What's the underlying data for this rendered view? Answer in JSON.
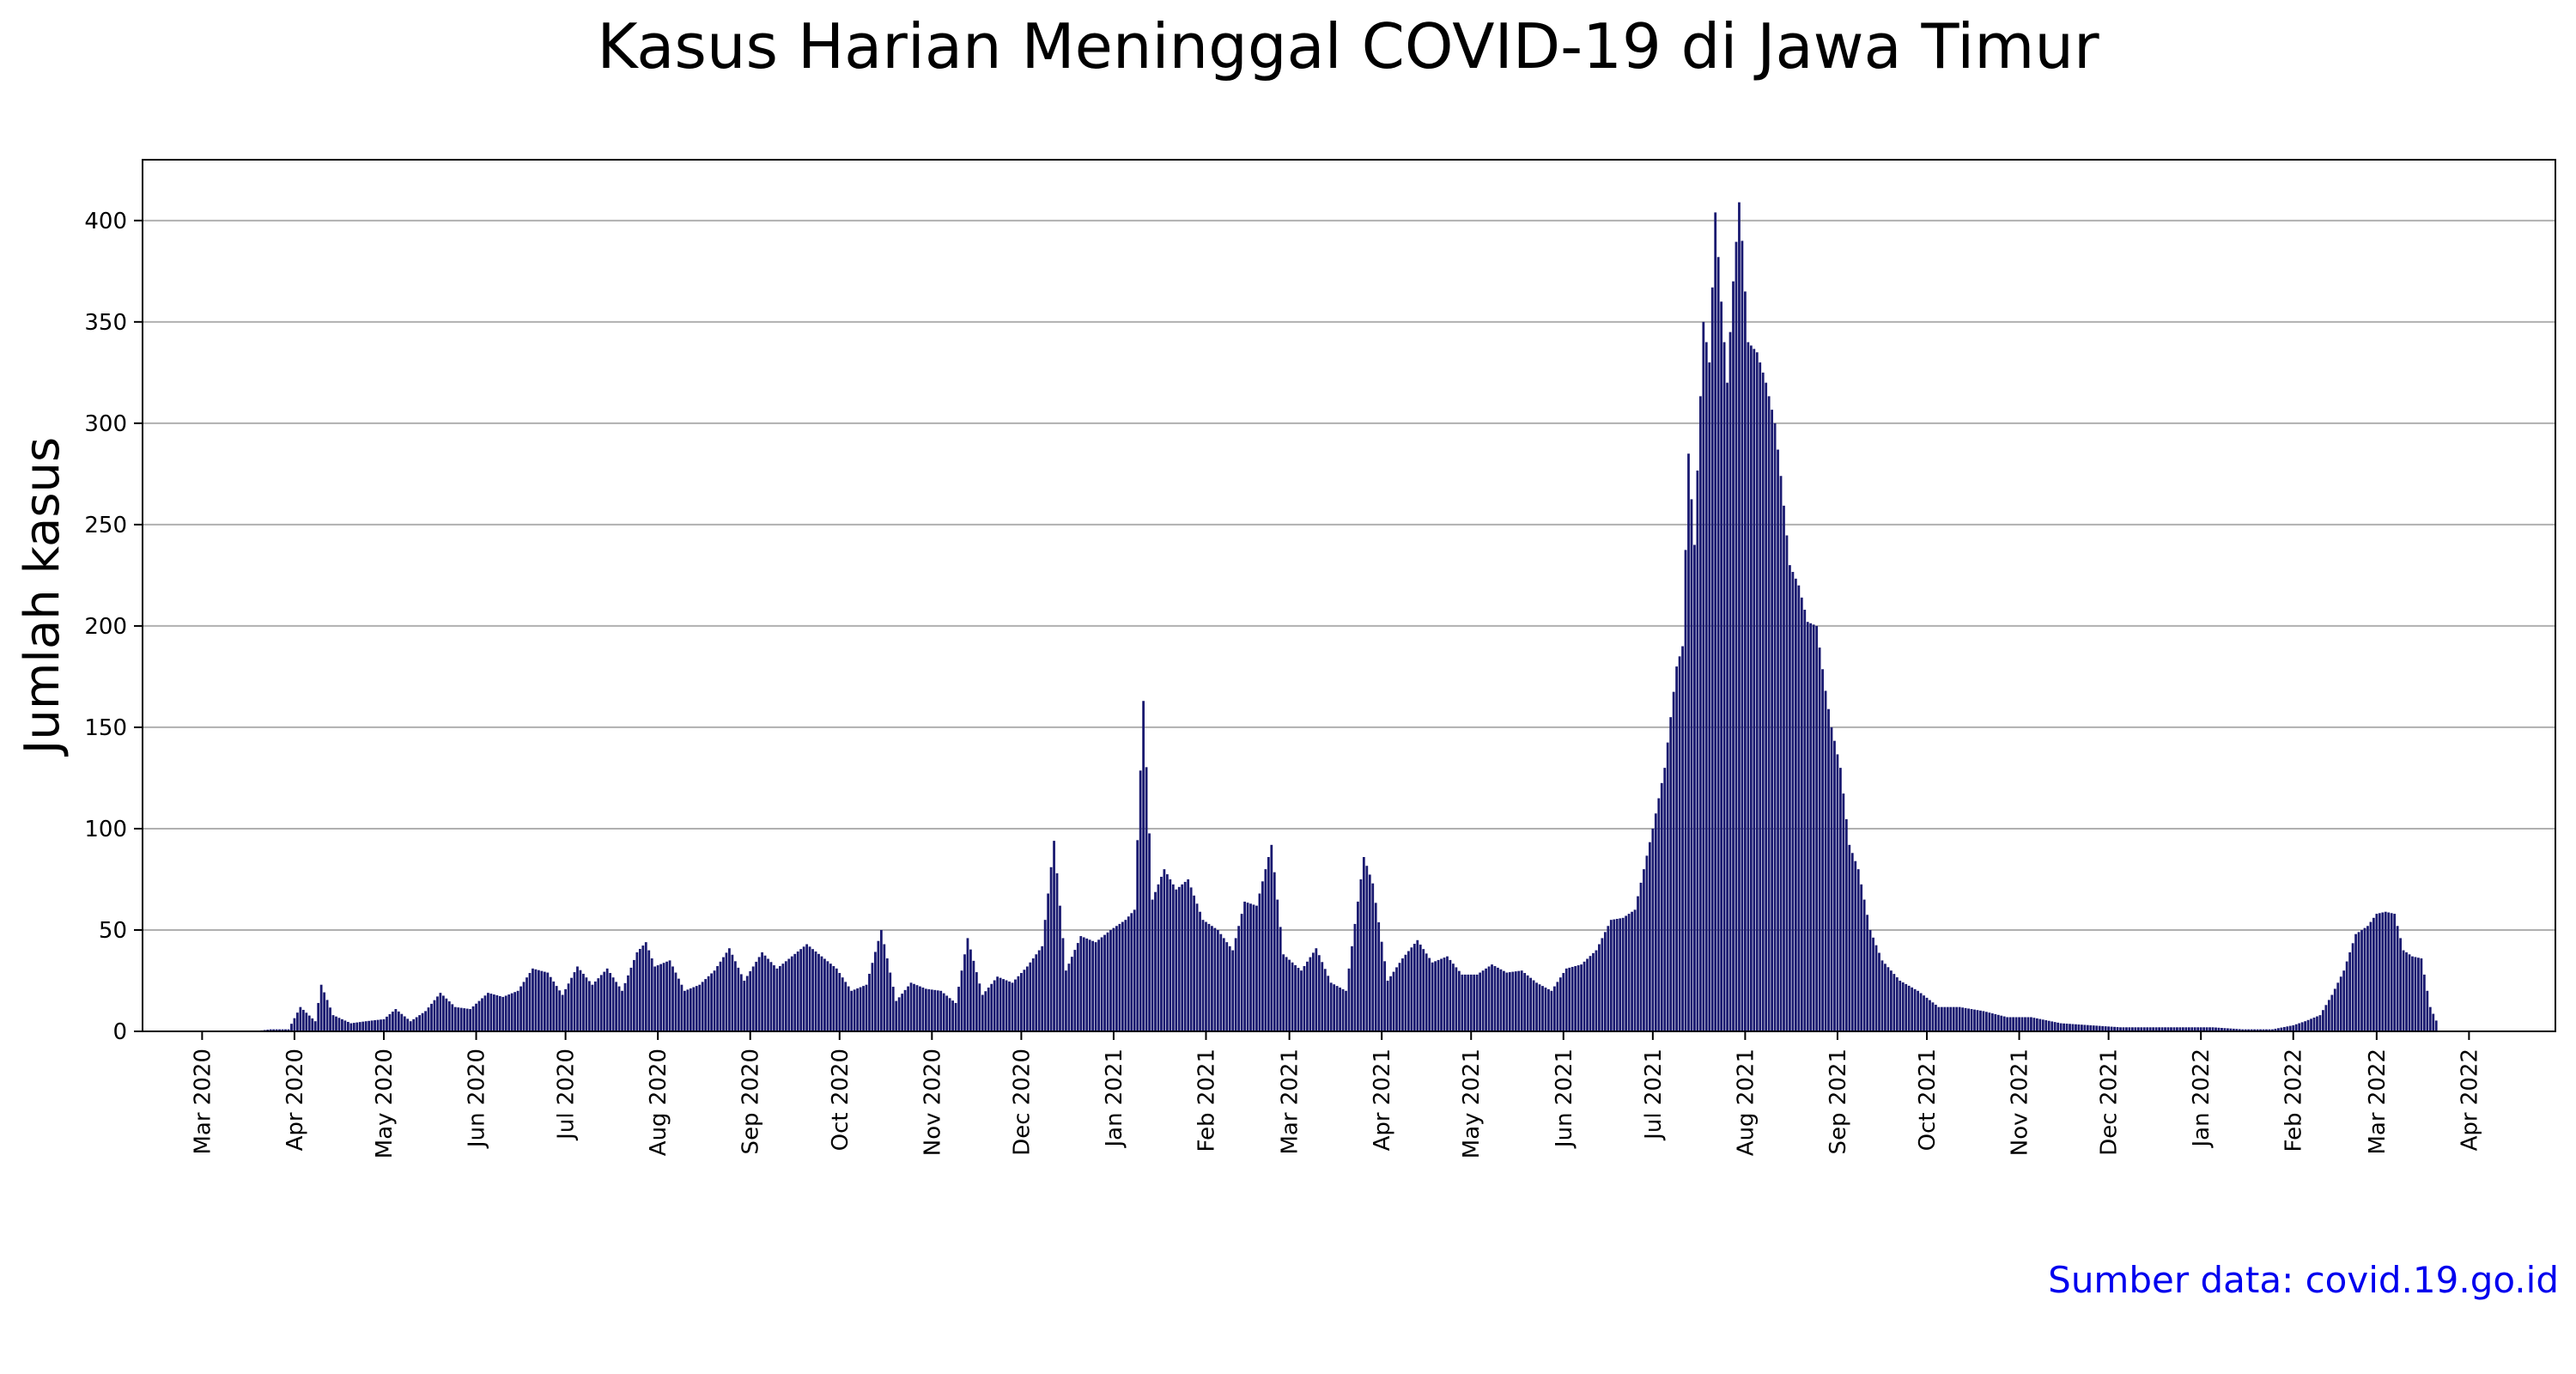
{
  "chart_data": {
    "type": "bar",
    "title": "Kasus Harian Meninggal COVID-19 di Jawa Timur",
    "xlabel": "",
    "ylabel": "Jumlah kasus",
    "x_ticks": [
      "Mar 2020",
      "Apr 2020",
      "May 2020",
      "Jun 2020",
      "Jul 2020",
      "Aug 2020",
      "Sep 2020",
      "Oct 2020",
      "Nov 2020",
      "Dec 2020",
      "Jan 2021",
      "Feb 2021",
      "Mar 2021",
      "Apr 2021",
      "May 2021",
      "Jun 2021",
      "Jul 2021",
      "Aug 2021",
      "Sep 2021",
      "Oct 2021",
      "Nov 2021",
      "Dec 2021",
      "Jan 2022",
      "Feb 2022",
      "Mar 2022",
      "Apr 2022"
    ],
    "y_ticks": [
      0,
      50,
      100,
      150,
      200,
      250,
      300,
      350,
      400
    ],
    "ylim": [
      0,
      430
    ],
    "xlim": [
      "2020-02-10",
      "2022-04-30"
    ],
    "grid": "horizontal",
    "bar_color": "#191970",
    "series": [
      {
        "values": [
          [
            "2020-03-18",
            0
          ],
          [
            "2020-03-24",
            1
          ],
          [
            "2020-03-30",
            1
          ],
          [
            "2020-04-03",
            12
          ],
          [
            "2020-04-08",
            5
          ],
          [
            "2020-04-10",
            23
          ],
          [
            "2020-04-14",
            8
          ],
          [
            "2020-04-20",
            4
          ],
          [
            "2020-04-25",
            5
          ],
          [
            "2020-05-01",
            6
          ],
          [
            "2020-05-05",
            11
          ],
          [
            "2020-05-10",
            5
          ],
          [
            "2020-05-15",
            10
          ],
          [
            "2020-05-20",
            19
          ],
          [
            "2020-05-25",
            12
          ],
          [
            "2020-05-30",
            11
          ],
          [
            "2020-06-05",
            19
          ],
          [
            "2020-06-10",
            17
          ],
          [
            "2020-06-15",
            20
          ],
          [
            "2020-06-20",
            31
          ],
          [
            "2020-06-25",
            29
          ],
          [
            "2020-06-30",
            18
          ],
          [
            "2020-07-05",
            32
          ],
          [
            "2020-07-10",
            23
          ],
          [
            "2020-07-15",
            31
          ],
          [
            "2020-07-20",
            20
          ],
          [
            "2020-07-25",
            39
          ],
          [
            "2020-07-28",
            44
          ],
          [
            "2020-07-31",
            32
          ],
          [
            "2020-08-05",
            35
          ],
          [
            "2020-08-10",
            20
          ],
          [
            "2020-08-15",
            23
          ],
          [
            "2020-08-20",
            30
          ],
          [
            "2020-08-25",
            41
          ],
          [
            "2020-08-30",
            25
          ],
          [
            "2020-09-05",
            39
          ],
          [
            "2020-09-10",
            31
          ],
          [
            "2020-09-15",
            37
          ],
          [
            "2020-09-20",
            43
          ],
          [
            "2020-09-25",
            37
          ],
          [
            "2020-09-30",
            31
          ],
          [
            "2020-10-05",
            20
          ],
          [
            "2020-10-10",
            23
          ],
          [
            "2020-10-15",
            50
          ],
          [
            "2020-10-20",
            15
          ],
          [
            "2020-10-25",
            24
          ],
          [
            "2020-10-30",
            21
          ],
          [
            "2020-11-04",
            20
          ],
          [
            "2020-11-09",
            14
          ],
          [
            "2020-11-13",
            46
          ],
          [
            "2020-11-18",
            18
          ],
          [
            "2020-11-23",
            27
          ],
          [
            "2020-11-28",
            24
          ],
          [
            "2020-12-03",
            32
          ],
          [
            "2020-12-08",
            42
          ],
          [
            "2020-12-12",
            94
          ],
          [
            "2020-12-16",
            30
          ],
          [
            "2020-12-21",
            47
          ],
          [
            "2020-12-26",
            44
          ],
          [
            "2020-12-31",
            50
          ],
          [
            "2021-01-05",
            55
          ],
          [
            "2021-01-08",
            60
          ],
          [
            "2021-01-11",
            163
          ],
          [
            "2021-01-14",
            65
          ],
          [
            "2021-01-18",
            80
          ],
          [
            "2021-01-22",
            70
          ],
          [
            "2021-01-26",
            75
          ],
          [
            "2021-01-31",
            55
          ],
          [
            "2021-02-05",
            50
          ],
          [
            "2021-02-10",
            40
          ],
          [
            "2021-02-14",
            64
          ],
          [
            "2021-02-18",
            62
          ],
          [
            "2021-02-23",
            92
          ],
          [
            "2021-02-27",
            38
          ],
          [
            "2021-03-05",
            30
          ],
          [
            "2021-03-10",
            41
          ],
          [
            "2021-03-15",
            24
          ],
          [
            "2021-03-20",
            20
          ],
          [
            "2021-03-26",
            86
          ],
          [
            "2021-03-29",
            73
          ],
          [
            "2021-04-03",
            25
          ],
          [
            "2021-04-08",
            36
          ],
          [
            "2021-04-13",
            45
          ],
          [
            "2021-04-18",
            34
          ],
          [
            "2021-04-23",
            37
          ],
          [
            "2021-04-28",
            28
          ],
          [
            "2021-05-03",
            28
          ],
          [
            "2021-05-08",
            33
          ],
          [
            "2021-05-13",
            29
          ],
          [
            "2021-05-18",
            30
          ],
          [
            "2021-05-23",
            24
          ],
          [
            "2021-05-28",
            20
          ],
          [
            "2021-06-02",
            31
          ],
          [
            "2021-06-07",
            33
          ],
          [
            "2021-06-12",
            40
          ],
          [
            "2021-06-17",
            55
          ],
          [
            "2021-06-21",
            56
          ],
          [
            "2021-06-25",
            60
          ],
          [
            "2021-07-01",
            100
          ],
          [
            "2021-07-05",
            130
          ],
          [
            "2021-07-09",
            180
          ],
          [
            "2021-07-11",
            190
          ],
          [
            "2021-07-13",
            285
          ],
          [
            "2021-07-15",
            240
          ],
          [
            "2021-07-18",
            350
          ],
          [
            "2021-07-20",
            330
          ],
          [
            "2021-07-22",
            404
          ],
          [
            "2021-07-24",
            360
          ],
          [
            "2021-07-26",
            320
          ],
          [
            "2021-07-28",
            370
          ],
          [
            "2021-07-30",
            409
          ],
          [
            "2021-07-31",
            390
          ],
          [
            "2021-08-02",
            340
          ],
          [
            "2021-08-05",
            335
          ],
          [
            "2021-08-08",
            320
          ],
          [
            "2021-08-11",
            300
          ],
          [
            "2021-08-13",
            274
          ],
          [
            "2021-08-16",
            230
          ],
          [
            "2021-08-19",
            220
          ],
          [
            "2021-08-22",
            202
          ],
          [
            "2021-08-25",
            200
          ],
          [
            "2021-08-28",
            168
          ],
          [
            "2021-08-30",
            150
          ],
          [
            "2021-09-02",
            130
          ],
          [
            "2021-09-05",
            92
          ],
          [
            "2021-09-08",
            80
          ],
          [
            "2021-09-12",
            50
          ],
          [
            "2021-09-16",
            35
          ],
          [
            "2021-09-22",
            25
          ],
          [
            "2021-09-28",
            20
          ],
          [
            "2021-10-05",
            12
          ],
          [
            "2021-10-12",
            12
          ],
          [
            "2021-10-20",
            10
          ],
          [
            "2021-10-28",
            7
          ],
          [
            "2021-11-05",
            7
          ],
          [
            "2021-11-15",
            4
          ],
          [
            "2021-11-25",
            3
          ],
          [
            "2021-12-05",
            2
          ],
          [
            "2021-12-15",
            2
          ],
          [
            "2021-12-25",
            2
          ],
          [
            "2022-01-05",
            2
          ],
          [
            "2022-01-15",
            1
          ],
          [
            "2022-01-25",
            1
          ],
          [
            "2022-02-01",
            3
          ],
          [
            "2022-02-05",
            5
          ],
          [
            "2022-02-10",
            8
          ],
          [
            "2022-02-14",
            18
          ],
          [
            "2022-02-18",
            30
          ],
          [
            "2022-02-22",
            48
          ],
          [
            "2022-02-26",
            52
          ],
          [
            "2022-03-01",
            58
          ],
          [
            "2022-03-04",
            59
          ],
          [
            "2022-03-07",
            58
          ],
          [
            "2022-03-10",
            40
          ],
          [
            "2022-03-13",
            37
          ],
          [
            "2022-03-16",
            36
          ],
          [
            "2022-03-19",
            12
          ],
          [
            "2022-03-22",
            2
          ]
        ]
      }
    ],
    "source_note": "Sumber data: covid.19.go.id",
    "source_color": "#0000ee"
  }
}
